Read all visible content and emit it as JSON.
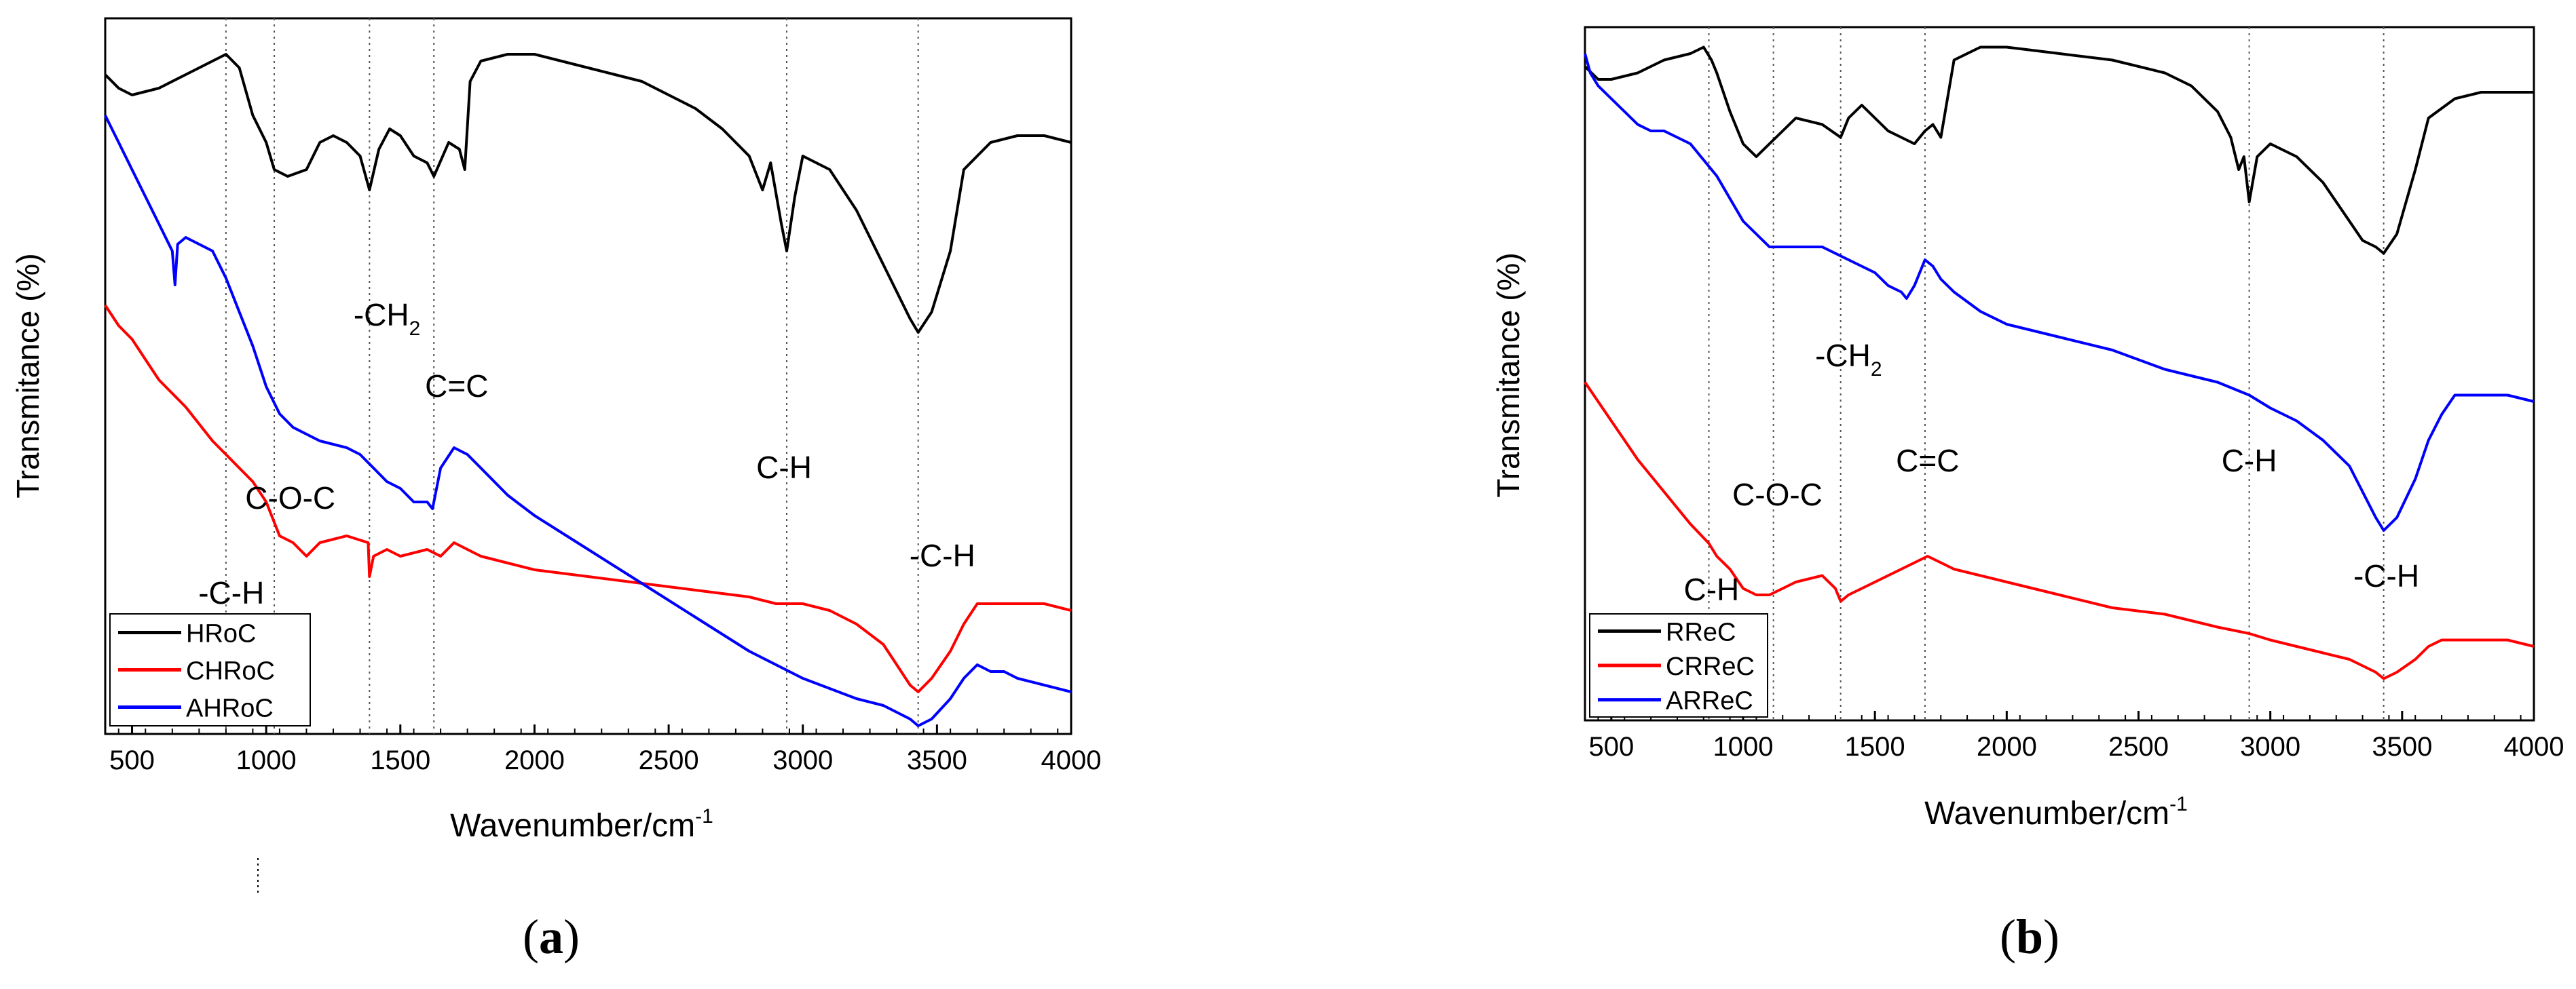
{
  "chart_data": [
    {
      "type": "line",
      "panel_label": "(a)",
      "panel_letter": "a",
      "xlabel": "Wavenumber/cm",
      "xlabel_sup": "-1",
      "ylabel": "Transmitance (%)",
      "xlim": [
        400,
        4000
      ],
      "xticks": [
        500,
        1000,
        1500,
        2000,
        2500,
        3000,
        3500,
        4000
      ],
      "legend": [
        "HRoC",
        "CHRoC",
        "AHRoC"
      ],
      "legend_location": "bottom-left",
      "markers": [
        850,
        1030,
        1385,
        1625,
        2940,
        3430
      ],
      "annotations": [
        {
          "text": "-C-H",
          "x": 870
        },
        {
          "text": "C-O-C",
          "x": 1090
        },
        {
          "text": "-CH",
          "sub": "2",
          "x": 1450
        },
        {
          "text": "C=C",
          "x": 1710
        },
        {
          "text": "C-H",
          "x": 2930
        },
        {
          "text": "-C-H",
          "x": 3520
        }
      ],
      "series": [
        {
          "name": "HRoC",
          "color": "#000000",
          "x": [
            400,
            450,
            500,
            600,
            700,
            800,
            850,
            900,
            950,
            1000,
            1030,
            1080,
            1150,
            1200,
            1250,
            1300,
            1350,
            1385,
            1420,
            1460,
            1500,
            1550,
            1600,
            1625,
            1680,
            1720,
            1740,
            1760,
            1800,
            1900,
            2000,
            2100,
            2200,
            2300,
            2400,
            2500,
            2600,
            2700,
            2800,
            2850,
            2880,
            2920,
            2940,
            2970,
            3000,
            3100,
            3200,
            3300,
            3400,
            3430,
            3480,
            3550,
            3600,
            3700,
            3800,
            3900,
            4000
          ],
          "y": [
            0.96,
            0.94,
            0.93,
            0.94,
            0.96,
            0.98,
            0.99,
            0.97,
            0.9,
            0.86,
            0.82,
            0.81,
            0.82,
            0.86,
            0.87,
            0.86,
            0.84,
            0.79,
            0.85,
            0.88,
            0.87,
            0.84,
            0.83,
            0.81,
            0.86,
            0.85,
            0.82,
            0.95,
            0.98,
            0.99,
            0.99,
            0.98,
            0.97,
            0.96,
            0.95,
            0.93,
            0.91,
            0.88,
            0.84,
            0.79,
            0.83,
            0.74,
            0.7,
            0.78,
            0.84,
            0.82,
            0.76,
            0.68,
            0.6,
            0.58,
            0.61,
            0.7,
            0.82,
            0.86,
            0.87,
            0.87,
            0.86
          ]
        },
        {
          "name": "CHRoC",
          "color": "#ff0000",
          "x": [
            400,
            450,
            500,
            550,
            600,
            700,
            800,
            850,
            900,
            950,
            1000,
            1050,
            1100,
            1150,
            1200,
            1300,
            1380,
            1385,
            1400,
            1450,
            1500,
            1600,
            1650,
            1700,
            1750,
            1800,
            1900,
            2000,
            2200,
            2400,
            2600,
            2800,
            2900,
            3000,
            3100,
            3200,
            3300,
            3350,
            3400,
            3430,
            3480,
            3550,
            3600,
            3650,
            3700,
            3800,
            3900,
            4000
          ],
          "y": [
            0.62,
            0.59,
            0.57,
            0.54,
            0.51,
            0.47,
            0.42,
            0.4,
            0.38,
            0.36,
            0.33,
            0.28,
            0.27,
            0.25,
            0.27,
            0.28,
            0.27,
            0.22,
            0.25,
            0.26,
            0.25,
            0.26,
            0.25,
            0.27,
            0.26,
            0.25,
            0.24,
            0.23,
            0.22,
            0.21,
            0.2,
            0.19,
            0.18,
            0.18,
            0.17,
            0.15,
            0.12,
            0.09,
            0.06,
            0.05,
            0.07,
            0.11,
            0.15,
            0.18,
            0.18,
            0.18,
            0.18,
            0.17
          ]
        },
        {
          "name": "AHRoC",
          "color": "#0000ff",
          "x": [
            400,
            450,
            500,
            550,
            600,
            650,
            660,
            670,
            700,
            750,
            800,
            850,
            900,
            950,
            1000,
            1050,
            1100,
            1200,
            1300,
            1350,
            1400,
            1450,
            1500,
            1550,
            1600,
            1620,
            1650,
            1700,
            1750,
            1800,
            1900,
            2000,
            2200,
            2400,
            2600,
            2800,
            3000,
            3200,
            3300,
            3350,
            3400,
            3430,
            3480,
            3550,
            3600,
            3650,
            3700,
            3750,
            3800,
            3900,
            4000
          ],
          "y": [
            0.9,
            0.86,
            0.82,
            0.78,
            0.74,
            0.7,
            0.65,
            0.71,
            0.72,
            0.71,
            0.7,
            0.66,
            0.61,
            0.56,
            0.5,
            0.46,
            0.44,
            0.42,
            0.41,
            0.4,
            0.38,
            0.36,
            0.35,
            0.33,
            0.33,
            0.32,
            0.38,
            0.41,
            0.4,
            0.38,
            0.34,
            0.31,
            0.26,
            0.21,
            0.16,
            0.11,
            0.07,
            0.04,
            0.03,
            0.02,
            0.01,
            0.0,
            0.01,
            0.04,
            0.07,
            0.09,
            0.08,
            0.08,
            0.07,
            0.06,
            0.05
          ]
        }
      ]
    },
    {
      "type": "line",
      "panel_label": "(b)",
      "panel_letter": "b",
      "xlabel": "Wavenumber/cm",
      "xlabel_sup": "-1",
      "ylabel": "Transmitance (%)",
      "xlim": [
        400,
        4000
      ],
      "xticks": [
        500,
        1000,
        1500,
        2000,
        2500,
        3000,
        3500,
        4000
      ],
      "legend": [
        "RReC",
        "CRReC",
        "ARReC"
      ],
      "legend_location": "bottom-left",
      "markers": [
        870,
        1115,
        1370,
        1690,
        2920,
        3430
      ],
      "annotations": [
        {
          "text": "C-H",
          "x": 880
        },
        {
          "text": "C-O-C",
          "x": 1130
        },
        {
          "text": "-CH",
          "sub": "2",
          "x": 1400
        },
        {
          "text": "C=C",
          "x": 1700
        },
        {
          "text": "C-H",
          "x": 2920
        },
        {
          "text": "-C-H",
          "x": 3440
        }
      ],
      "series": [
        {
          "name": "RReC",
          "color": "#000000",
          "x": [
            400,
            450,
            500,
            600,
            700,
            800,
            850,
            880,
            900,
            950,
            1000,
            1050,
            1100,
            1150,
            1200,
            1300,
            1370,
            1400,
            1450,
            1500,
            1550,
            1600,
            1650,
            1690,
            1720,
            1750,
            1800,
            1900,
            2000,
            2200,
            2400,
            2600,
            2700,
            2800,
            2850,
            2880,
            2900,
            2920,
            2950,
            3000,
            3100,
            3200,
            3300,
            3350,
            3400,
            3430,
            3480,
            3550,
            3600,
            3700,
            3800,
            3900,
            4000
          ],
          "y": [
            0.96,
            0.94,
            0.94,
            0.95,
            0.97,
            0.98,
            0.99,
            0.97,
            0.95,
            0.89,
            0.84,
            0.82,
            0.84,
            0.86,
            0.88,
            0.87,
            0.85,
            0.88,
            0.9,
            0.88,
            0.86,
            0.85,
            0.84,
            0.86,
            0.87,
            0.85,
            0.97,
            0.99,
            0.99,
            0.98,
            0.97,
            0.95,
            0.93,
            0.89,
            0.85,
            0.8,
            0.82,
            0.75,
            0.82,
            0.84,
            0.82,
            0.78,
            0.72,
            0.69,
            0.68,
            0.67,
            0.7,
            0.8,
            0.88,
            0.91,
            0.92,
            0.92,
            0.92
          ]
        },
        {
          "name": "CRReC",
          "color": "#ff0000",
          "x": [
            400,
            450,
            500,
            550,
            600,
            700,
            800,
            870,
            900,
            950,
            1000,
            1050,
            1100,
            1150,
            1200,
            1300,
            1350,
            1370,
            1400,
            1450,
            1500,
            1600,
            1650,
            1700,
            1750,
            1800,
            1900,
            2000,
            2200,
            2400,
            2600,
            2800,
            2920,
            3000,
            3100,
            3200,
            3300,
            3350,
            3400,
            3430,
            3480,
            3550,
            3600,
            3650,
            3700,
            3800,
            3900,
            4000
          ],
          "y": [
            0.47,
            0.44,
            0.41,
            0.38,
            0.35,
            0.3,
            0.25,
            0.22,
            0.2,
            0.18,
            0.15,
            0.14,
            0.14,
            0.15,
            0.16,
            0.17,
            0.15,
            0.13,
            0.14,
            0.15,
            0.16,
            0.18,
            0.19,
            0.2,
            0.19,
            0.18,
            0.17,
            0.16,
            0.14,
            0.12,
            0.11,
            0.09,
            0.08,
            0.07,
            0.06,
            0.05,
            0.04,
            0.03,
            0.02,
            0.01,
            0.02,
            0.04,
            0.06,
            0.07,
            0.07,
            0.07,
            0.07,
            0.06
          ]
        },
        {
          "name": "ARReC",
          "color": "#0000ff",
          "x": [
            400,
            420,
            450,
            500,
            550,
            600,
            650,
            700,
            800,
            900,
            1000,
            1050,
            1100,
            1200,
            1300,
            1400,
            1500,
            1550,
            1600,
            1620,
            1650,
            1690,
            1720,
            1750,
            1800,
            1900,
            2000,
            2200,
            2400,
            2600,
            2800,
            2920,
            3000,
            3100,
            3200,
            3300,
            3350,
            3400,
            3430,
            3480,
            3550,
            3600,
            3650,
            3700,
            3750,
            3800,
            3900,
            4000
          ],
          "y": [
            0.98,
            0.95,
            0.93,
            0.91,
            0.89,
            0.87,
            0.86,
            0.86,
            0.84,
            0.79,
            0.72,
            0.7,
            0.68,
            0.68,
            0.68,
            0.66,
            0.64,
            0.62,
            0.61,
            0.6,
            0.62,
            0.66,
            0.65,
            0.63,
            0.61,
            0.58,
            0.56,
            0.54,
            0.52,
            0.49,
            0.47,
            0.45,
            0.43,
            0.41,
            0.38,
            0.34,
            0.3,
            0.26,
            0.24,
            0.26,
            0.32,
            0.38,
            0.42,
            0.45,
            0.45,
            0.45,
            0.45,
            0.44
          ]
        }
      ]
    }
  ]
}
